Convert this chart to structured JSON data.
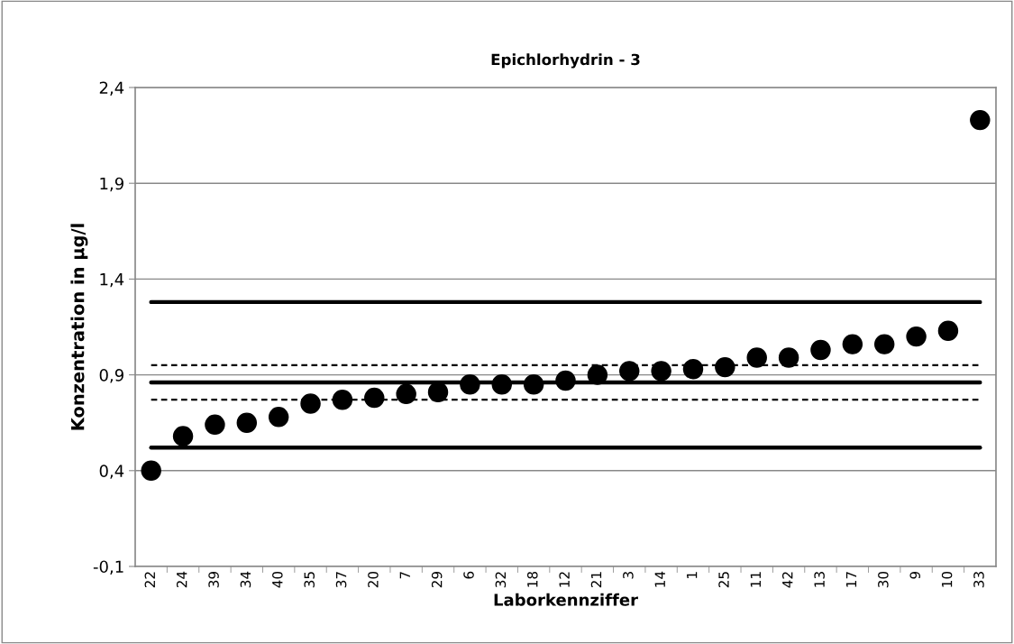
{
  "chart_data": {
    "type": "scatter",
    "title": "Epichlorhydrin - 3",
    "xlabel": "Laborkennziffer",
    "ylabel": "Konzentration in µg/l",
    "categories": [
      "22",
      "24",
      "39",
      "34",
      "40",
      "35",
      "37",
      "20",
      "7",
      "29",
      "6",
      "32",
      "18",
      "12",
      "21",
      "3",
      "14",
      "1",
      "25",
      "11",
      "42",
      "13",
      "17",
      "30",
      "9",
      "10",
      "33"
    ],
    "series": [
      {
        "color": "#000000",
        "values": [
          0.4,
          0.58,
          0.64,
          0.65,
          0.68,
          0.75,
          0.77,
          0.78,
          0.8,
          0.81,
          0.85,
          0.85,
          0.85,
          0.87,
          0.9,
          0.92,
          0.92,
          0.93,
          0.94,
          0.99,
          0.99,
          1.03,
          1.06,
          1.06,
          1.1,
          1.13,
          2.23
        ]
      }
    ],
    "marker": "circle",
    "ylim": [
      -0.1,
      2.4
    ],
    "yticks": [
      {
        "value": -0.1,
        "label": "-0,1"
      },
      {
        "value": 0.4,
        "label": "0,4"
      },
      {
        "value": 0.9,
        "label": "0,9"
      },
      {
        "value": 1.4,
        "label": "1,4"
      },
      {
        "value": 1.9,
        "label": "1,9"
      },
      {
        "value": 2.4,
        "label": "2,4"
      }
    ],
    "grid": "y",
    "legend": false,
    "ref_lines": [
      {
        "axis": "y",
        "value": 1.28,
        "color": "#000000",
        "line_style": "solid"
      },
      {
        "axis": "y",
        "value": 0.95,
        "color": "#000000",
        "line_style": "dashed"
      },
      {
        "axis": "y",
        "value": 0.86,
        "color": "#000000",
        "line_style": "solid"
      },
      {
        "axis": "y",
        "value": 0.77,
        "color": "#000000",
        "line_style": "dashed"
      },
      {
        "axis": "y",
        "value": 0.52,
        "color": "#000000",
        "line_style": "solid"
      }
    ]
  }
}
